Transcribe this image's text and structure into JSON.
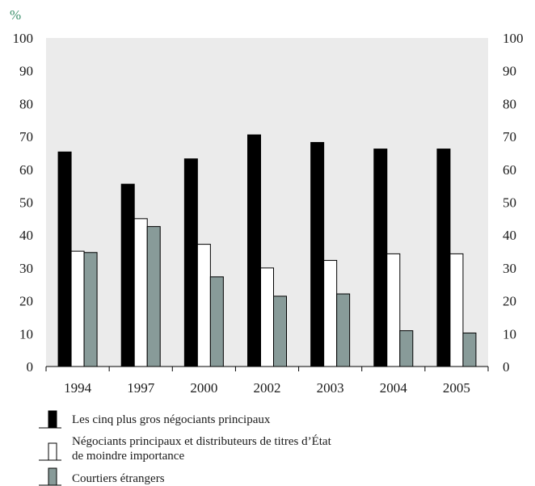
{
  "chart_data": {
    "type": "bar",
    "unit_label": "%",
    "title": "",
    "xlabel": "",
    "ylabel": "",
    "categories": [
      "1994",
      "1997",
      "2000",
      "2002",
      "2003",
      "2004",
      "2005"
    ],
    "ylim": [
      0,
      100
    ],
    "yticks": [
      "0",
      "10",
      "20",
      "30",
      "40",
      "50",
      "60",
      "70",
      "80",
      "90",
      "100"
    ],
    "grid": false,
    "background_color": "#ebebeb",
    "legend_position": "bottom-left",
    "series": [
      {
        "name": "Les cinq plus gros négociants principaux",
        "color": "#000000",
        "values": [
          65.3,
          55.5,
          63.2,
          70.5,
          68.2,
          66.2,
          66.2
        ]
      },
      {
        "name": "Négociants principaux et distributeurs de titres d’État de moindre importance",
        "color": "#ffffff",
        "values": [
          35.1,
          45.0,
          37.2,
          30.0,
          32.3,
          34.3,
          34.3
        ]
      },
      {
        "name": "Courtiers étrangers",
        "color": "#889b99",
        "values": [
          34.7,
          42.6,
          27.3,
          21.4,
          22.1,
          10.9,
          10.2
        ]
      }
    ]
  }
}
